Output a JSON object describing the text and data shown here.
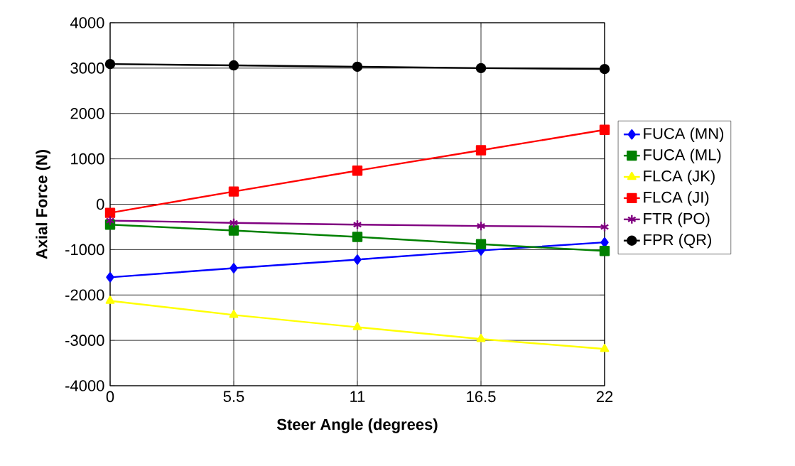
{
  "chart_data": {
    "type": "line",
    "xlabel": "Steer Angle (degrees)",
    "ylabel": "Axial Force (N)",
    "x": [
      0,
      5.5,
      11,
      16.5,
      22
    ],
    "series": [
      {
        "name": "FUCA (MN)",
        "color": "#0000ff",
        "marker": "diamond",
        "values": [
          -1610,
          -1410,
          -1220,
          -1020,
          -840
        ]
      },
      {
        "name": "FUCA (ML)",
        "color": "#008000",
        "marker": "square",
        "values": [
          -450,
          -580,
          -720,
          -880,
          -1030
        ]
      },
      {
        "name": "FLCA (JK)",
        "color": "#ffff00",
        "marker": "triangle",
        "values": [
          -2130,
          -2440,
          -2710,
          -2970,
          -3190
        ]
      },
      {
        "name": "FLCA (JI)",
        "color": "#ff0000",
        "marker": "square",
        "values": [
          -190,
          280,
          740,
          1190,
          1640
        ]
      },
      {
        "name": "FTR (PO)",
        "color": "#800080",
        "marker": "cross",
        "values": [
          -360,
          -410,
          -450,
          -480,
          -500
        ]
      },
      {
        "name": "FPR (QR)",
        "color": "#000000",
        "marker": "circle",
        "values": [
          3090,
          3060,
          3030,
          3000,
          2980
        ]
      }
    ],
    "xlim": [
      0,
      22
    ],
    "xticks": [
      0,
      5.5,
      11,
      16.5,
      22
    ],
    "ylim": [
      -4000,
      4000
    ],
    "yticks": [
      -4000,
      -3000,
      -2000,
      -1000,
      0,
      1000,
      2000,
      3000,
      4000
    ],
    "grid": true,
    "legend": "right",
    "line_style": "solid"
  }
}
